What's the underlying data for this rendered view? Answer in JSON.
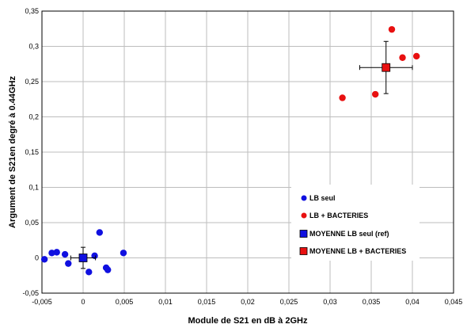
{
  "chart_data": {
    "type": "scatter",
    "xlabel": "Module de S21 en dB à 2GHz",
    "ylabel": "Argument de S21en degré à 0.44GHz",
    "xlim": [
      -0.005,
      0.045
    ],
    "ylim": [
      -0.05,
      0.35
    ],
    "x_ticks": [
      -0.005,
      0,
      0.005,
      0.01,
      0.015,
      0.02,
      0.025,
      0.03,
      0.035,
      0.04,
      0.045
    ],
    "x_tick_labels": [
      "-0,005",
      "0",
      "0,005",
      "0,01",
      "0,015",
      "0,02",
      "0,025",
      "0,03",
      "0,035",
      "0,04",
      "0,045"
    ],
    "y_ticks": [
      -0.05,
      0,
      0.05,
      0.1,
      0.15,
      0.2,
      0.25,
      0.3,
      0.35
    ],
    "y_tick_labels": [
      "-0,05",
      "0",
      "0,05",
      "0,1",
      "0,15",
      "0,2",
      "0,25",
      "0,3",
      "0,35"
    ],
    "grid": true,
    "legend_position": "bottom-right",
    "series": [
      {
        "name": "LB seul",
        "marker": "circle",
        "color": "#1010e0",
        "points": [
          {
            "x": -0.0047,
            "y": -0.002
          },
          {
            "x": -0.0038,
            "y": 0.007
          },
          {
            "x": -0.0032,
            "y": 0.008
          },
          {
            "x": -0.0022,
            "y": 0.005
          },
          {
            "x": -0.0018,
            "y": -0.008
          },
          {
            "x": 0.0007,
            "y": -0.02
          },
          {
            "x": 0.0014,
            "y": 0.003
          },
          {
            "x": 0.002,
            "y": 0.036
          },
          {
            "x": 0.0028,
            "y": -0.014
          },
          {
            "x": 0.003,
            "y": -0.017
          },
          {
            "x": 0.0049,
            "y": 0.007
          }
        ]
      },
      {
        "name": "LB + BACTERIES",
        "marker": "circle",
        "color": "#e81010",
        "points": [
          {
            "x": 0.0315,
            "y": 0.227
          },
          {
            "x": 0.0355,
            "y": 0.232
          },
          {
            "x": 0.0375,
            "y": 0.324
          },
          {
            "x": 0.0388,
            "y": 0.284
          },
          {
            "x": 0.0405,
            "y": 0.286
          }
        ]
      },
      {
        "name": "MOYENNE LB seul (ref)",
        "marker": "square",
        "color": "#1010e0",
        "points": [
          {
            "x": 0.0,
            "y": 0.0,
            "xerr": 0.0015,
            "yerr": 0.015
          }
        ]
      },
      {
        "name": "MOYENNE LB + BACTERIES",
        "marker": "square",
        "color": "#e81010",
        "points": [
          {
            "x": 0.0368,
            "y": 0.27,
            "xerr": 0.0032,
            "yerr": 0.037
          }
        ]
      }
    ]
  }
}
